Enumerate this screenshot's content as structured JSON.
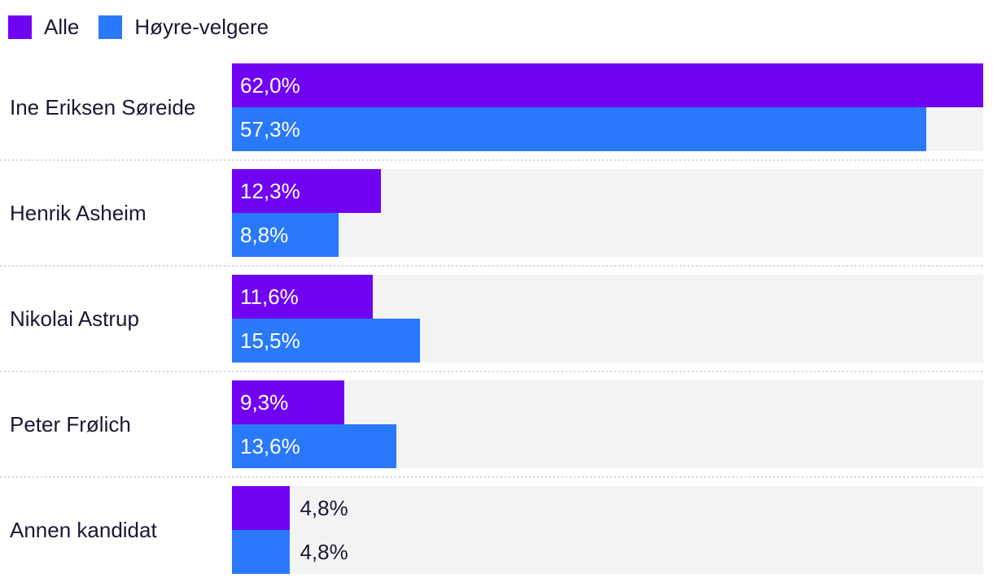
{
  "page": {
    "background": "#ffffff"
  },
  "legend": {
    "items": [
      {
        "label": "Alle",
        "color": "#7004f2"
      },
      {
        "label": "Høyre-velgere",
        "color": "#2979fa"
      }
    ]
  },
  "chart_data": {
    "type": "bar",
    "orientation": "horizontal",
    "title": "",
    "categories": [
      "Ine Eriksen Søreide",
      "Henrik Asheim",
      "Nikolai Astrup",
      "Peter Frølich",
      "Annen kandidat"
    ],
    "series": [
      {
        "name": "Alle",
        "color": "#7004f2",
        "values": [
          62.0,
          12.3,
          11.6,
          9.3,
          4.8
        ],
        "labels": [
          "62,0%",
          "12,3%",
          "11,6%",
          "9,3%",
          "4,8%"
        ]
      },
      {
        "name": "Høyre-velgere",
        "color": "#2979fa",
        "values": [
          57.3,
          8.8,
          15.5,
          13.6,
          4.8
        ],
        "labels": [
          "57,3%",
          "8,8%",
          "15,5%",
          "13,6%",
          "4,8%"
        ]
      }
    ],
    "xlim": [
      0,
      62.0
    ],
    "value_suffix": "%",
    "decimal_separator": ",",
    "grid": false,
    "legend_position": "top-left",
    "colors": {
      "track": "#f3f3f4",
      "separator": "#d4d4d4",
      "category_text": "#1e1633",
      "value_label_inside": "#ffffff",
      "value_label_outside": "#1e1633"
    }
  }
}
